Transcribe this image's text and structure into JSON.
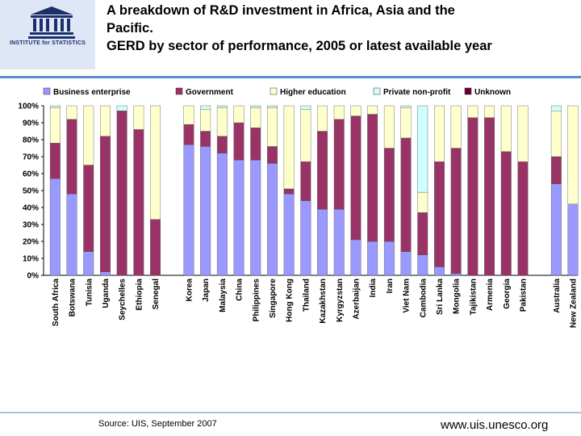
{
  "header": {
    "title_lines": [
      "A breakdown of R&D investment in Africa, Asia and the",
      "Pacific.",
      "GERD by sector of performance, 2005 or latest available year"
    ],
    "logo": {
      "wordmark": "UNESCO",
      "institute": "INSTITUTE for STATISTICS"
    }
  },
  "footer": {
    "source": "Source: UIS, September 2007",
    "website": "www.uis.unesco.org"
  },
  "colors": {
    "Business enterprise": "#9999ff",
    "Government": "#993366",
    "Higher education": "#ffffcc",
    "Private non-profit": "#ccffff",
    "Unknown": "#660033",
    "rule": "#5b8fd1"
  },
  "chart_data": {
    "type": "bar",
    "stacked": true,
    "title": "",
    "xlabel": "",
    "ylabel": "",
    "ylim": [
      0,
      100
    ],
    "yticks": [
      "0%",
      "10%",
      "20%",
      "30%",
      "40%",
      "50%",
      "60%",
      "70%",
      "80%",
      "90%",
      "100%"
    ],
    "legend_position": "top",
    "groups": [
      [
        "South Africa",
        "Botswana",
        "Tunisia",
        "Uganda",
        "Seychelles",
        "Ethiopia",
        "Senegal"
      ],
      [
        "Korea",
        "Japan",
        "Malaysia",
        "China",
        "Philippines",
        "Singapore",
        "Hong Kong",
        "Thailand",
        "Kazakhstan",
        "Kyrgyzstan",
        "Azerbaijan",
        "India",
        "Iran",
        "Viet Nam",
        "Cambodia",
        "Sri Lanka",
        "Mongolia",
        "Tajikistan",
        "Armenia",
        "Georgia",
        "Pakistan"
      ],
      [
        "Australia",
        "New Zealand"
      ]
    ],
    "categories": [
      "South Africa",
      "Botswana",
      "Tunisia",
      "Uganda",
      "Seychelles",
      "Ethiopia",
      "Senegal",
      "Korea",
      "Japan",
      "Malaysia",
      "China",
      "Philippines",
      "Singapore",
      "Hong Kong",
      "Thailand",
      "Kazakhstan",
      "Kyrgyzstan",
      "Azerbaijan",
      "India",
      "Iran",
      "Viet Nam",
      "Cambodia",
      "Sri Lanka",
      "Mongolia",
      "Tajikistan",
      "Armenia",
      "Georgia",
      "Pakistan",
      "Australia",
      "New Zealand"
    ],
    "series": [
      {
        "name": "Business enterprise",
        "values": [
          57,
          48,
          14,
          2,
          0,
          0,
          0,
          77,
          76,
          72,
          68,
          68,
          66,
          48,
          44,
          39,
          39,
          21,
          20,
          20,
          14,
          12,
          5,
          1,
          0,
          0,
          0,
          0,
          54,
          42
        ]
      },
      {
        "name": "Government",
        "values": [
          21,
          44,
          51,
          80,
          97,
          86,
          33,
          12,
          9,
          10,
          22,
          19,
          10,
          3,
          23,
          46,
          53,
          73,
          75,
          55,
          67,
          25,
          62,
          74,
          93,
          93,
          73,
          67,
          16,
          0
        ]
      },
      {
        "name": "Higher education",
        "values": [
          21,
          8,
          35,
          18,
          0,
          14,
          67,
          11,
          13,
          17,
          10,
          12,
          23,
          49,
          31,
          15,
          8,
          6,
          5,
          25,
          18,
          12,
          33,
          25,
          7,
          7,
          27,
          33,
          27,
          58
        ]
      },
      {
        "name": "Private non-profit",
        "values": [
          1,
          0,
          0,
          0,
          3,
          0,
          0,
          0,
          2,
          1,
          0,
          1,
          1,
          0,
          2,
          0,
          0,
          0,
          0,
          0,
          1,
          51,
          0,
          0,
          0,
          0,
          0,
          0,
          3,
          0
        ]
      },
      {
        "name": "Unknown",
        "values": [
          0,
          0,
          0,
          0,
          0,
          0,
          0,
          0,
          0,
          0,
          0,
          0,
          0,
          0,
          0,
          0,
          0,
          0,
          0,
          0,
          0,
          0,
          0,
          0,
          0,
          0,
          0,
          0,
          0,
          0
        ]
      }
    ]
  }
}
